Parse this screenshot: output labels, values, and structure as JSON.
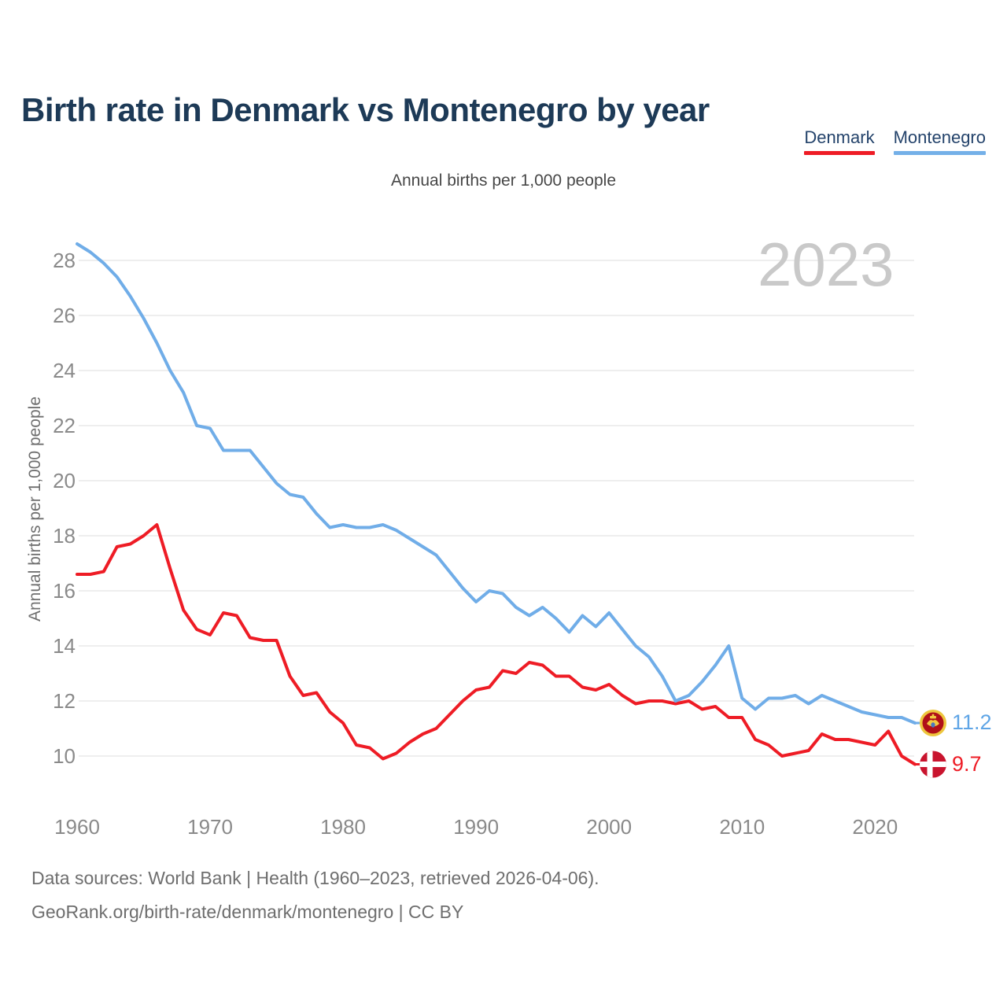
{
  "title": "Birth rate in Denmark vs Montenegro by year",
  "subtitle": "Annual births per 1,000 people",
  "watermark": "2023",
  "legend": [
    {
      "label": "Denmark",
      "color": "#ee1c25"
    },
    {
      "label": "Montenegro",
      "color": "#74b0e8"
    }
  ],
  "y_axis": {
    "title": "Annual births per 1,000 people",
    "ticks": [
      28,
      26,
      24,
      22,
      20,
      18,
      16,
      14,
      12,
      10
    ]
  },
  "x_axis": {
    "ticks": [
      1960,
      1970,
      1980,
      1990,
      2000,
      2010,
      2020
    ]
  },
  "end_labels": {
    "montenegro": "11.2",
    "denmark": "9.7"
  },
  "flags": {
    "denmark": {
      "bg": "#c9142e",
      "cross": "#ffffff"
    },
    "montenegro": {
      "ring": "#edc63e",
      "field": "#b01018",
      "emblem": "#f2ca41",
      "shield": "#4a79c1"
    }
  },
  "footer": {
    "line1": "Data sources: World Bank | Health (1960–2023, retrieved 2026-04-06).",
    "line2": "GeoRank.org/birth-rate/denmark/montenegro | CC BY"
  },
  "chart_data": {
    "type": "line",
    "title": "Birth rate in Denmark vs Montenegro by year",
    "subtitle": "Annual births per 1,000 people",
    "ylabel": "Annual births per 1,000 people",
    "xlabel": "",
    "ylim": [
      9,
      29.5
    ],
    "xlim": [
      1960,
      2023
    ],
    "grid": "horizontal",
    "legend_position": "top-right",
    "x": [
      1960,
      1961,
      1962,
      1963,
      1964,
      1965,
      1966,
      1967,
      1968,
      1969,
      1970,
      1971,
      1972,
      1973,
      1974,
      1975,
      1976,
      1977,
      1978,
      1979,
      1980,
      1981,
      1982,
      1983,
      1984,
      1985,
      1986,
      1987,
      1988,
      1989,
      1990,
      1991,
      1992,
      1993,
      1994,
      1995,
      1996,
      1997,
      1998,
      1999,
      2000,
      2001,
      2002,
      2003,
      2004,
      2005,
      2006,
      2007,
      2008,
      2009,
      2010,
      2011,
      2012,
      2013,
      2014,
      2015,
      2016,
      2017,
      2018,
      2019,
      2020,
      2021,
      2022,
      2023
    ],
    "series": [
      {
        "name": "Denmark",
        "color": "#ee1c25",
        "final_value": 9.7,
        "values": [
          16.6,
          16.6,
          16.7,
          17.6,
          17.7,
          18.0,
          18.4,
          16.8,
          15.3,
          14.6,
          14.4,
          15.2,
          15.1,
          14.3,
          14.2,
          14.2,
          12.9,
          12.2,
          12.3,
          11.6,
          11.2,
          10.4,
          10.3,
          9.9,
          10.1,
          10.5,
          10.8,
          11.0,
          11.5,
          12.0,
          12.4,
          12.5,
          13.1,
          13.0,
          13.4,
          13.3,
          12.9,
          12.9,
          12.5,
          12.4,
          12.6,
          12.2,
          11.9,
          12.0,
          12.0,
          11.9,
          12.0,
          11.7,
          11.8,
          11.4,
          11.4,
          10.6,
          10.4,
          10.0,
          10.1,
          10.2,
          10.8,
          10.6,
          10.6,
          10.5,
          10.4,
          10.9,
          10.0,
          9.7
        ]
      },
      {
        "name": "Montenegro",
        "color": "#70ade8",
        "final_value": 11.2,
        "values": [
          28.6,
          28.3,
          27.9,
          27.4,
          26.7,
          25.9,
          25.0,
          24.0,
          23.2,
          22.0,
          21.9,
          21.1,
          21.1,
          21.1,
          20.5,
          19.9,
          19.5,
          19.4,
          18.8,
          18.3,
          18.4,
          18.3,
          18.3,
          18.4,
          18.2,
          17.9,
          17.6,
          17.3,
          16.7,
          16.1,
          15.6,
          16.0,
          15.9,
          15.4,
          15.1,
          15.4,
          15.0,
          14.5,
          15.1,
          14.7,
          15.2,
          14.6,
          14.0,
          13.6,
          12.9,
          12.0,
          12.2,
          12.7,
          13.3,
          14.0,
          12.1,
          11.7,
          12.1,
          12.1,
          12.2,
          11.9,
          12.2,
          12.0,
          11.8,
          11.6,
          11.5,
          11.4,
          11.4,
          11.2
        ]
      }
    ]
  }
}
